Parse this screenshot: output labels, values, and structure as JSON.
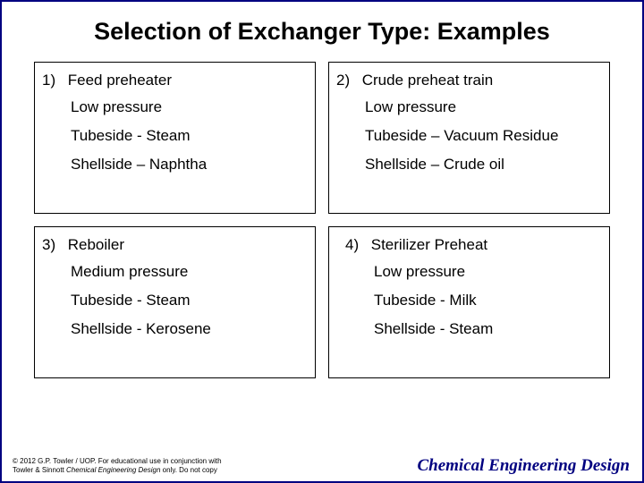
{
  "title": "Selection of Exchanger Type: Examples",
  "boxes": [
    {
      "num": "1)",
      "heading": "Feed preheater",
      "lines": [
        "Low pressure",
        "Tubeside - Steam",
        "Shellside – Naphtha"
      ]
    },
    {
      "num": "2)",
      "heading": "Crude preheat train",
      "lines": [
        "Low pressure",
        "Tubeside – Vacuum Residue",
        "Shellside – Crude oil"
      ]
    },
    {
      "num": "3)",
      "heading": "Reboiler",
      "lines": [
        "Medium pressure",
        "Tubeside - Steam",
        "Shellside - Kerosene"
      ]
    },
    {
      "num": "4)",
      "heading": "Sterilizer Preheat",
      "lines": [
        "Low pressure",
        "Tubeside - Milk",
        "Shellside - Steam"
      ]
    }
  ],
  "footer": {
    "copyright_line1": "© 2012 G.P. Towler / UOP. For educational use in conjunction with",
    "copyright_line2a": "Towler & Sinnott ",
    "copyright_line2b": "Chemical Engineering Design",
    "copyright_line2c": " only. Do not copy",
    "book": "Chemical Engineering Design"
  },
  "colors": {
    "border": "#000080",
    "text": "#000000",
    "footer_title": "#000080",
    "background": "#ffffff"
  }
}
